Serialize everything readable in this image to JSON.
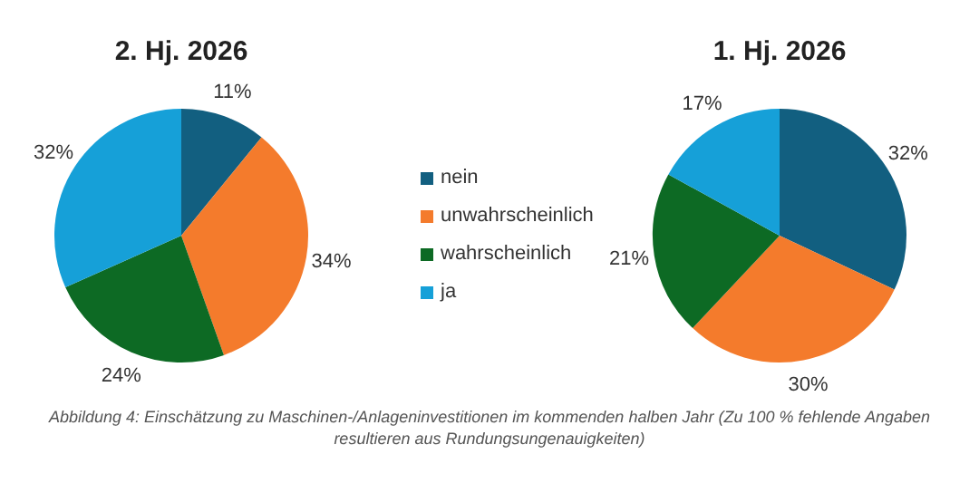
{
  "chart_data": [
    {
      "type": "pie",
      "title": "2. Hj. 2026",
      "categories": [
        "nein",
        "unwahrscheinlich",
        "wahrscheinlich",
        "ja"
      ],
      "values": [
        11,
        34,
        24,
        32
      ],
      "value_labels": [
        "11%",
        "34%",
        "24%",
        "32%"
      ],
      "colors": [
        "#125f80",
        "#f47b2c",
        "#0d6a24",
        "#16a0d8"
      ],
      "legend": "right",
      "annotations": [
        "Abbildung 4: Einschätzung zu Maschinen-/Anlageninvestitionen im kommenden halben Jahr (Zu 100 % fehlende Angaben resultieren aus Rundungsungenauigkeiten)"
      ]
    },
    {
      "type": "pie",
      "title": "1. Hj. 2026",
      "categories": [
        null,
        null,
        null,
        null
      ],
      "values": [
        32,
        30,
        21,
        17
      ],
      "value_labels": [
        "32%",
        "30%",
        "21%",
        "17%"
      ],
      "colors": [
        "#125f80",
        "#f47b2c",
        "#0d6a24",
        "#16a0d8"
      ]
    }
  ]
}
